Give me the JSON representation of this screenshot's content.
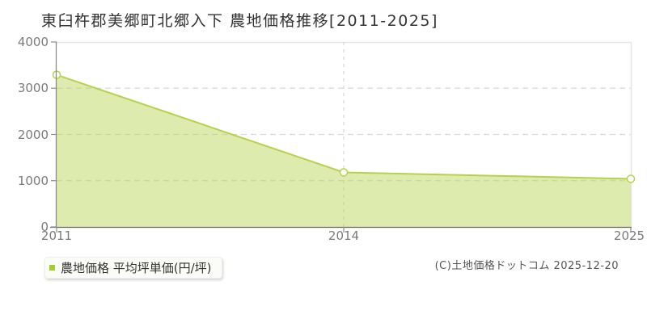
{
  "title": "東臼杵郡美郷町北郷入下 農地価格推移[2011-2025]",
  "legend": {
    "label": "農地価格 平均坪単価(円/坪)"
  },
  "footer": {
    "copyright": "(C)土地価格ドットコム 2025-12-20"
  },
  "chart_data": {
    "type": "area",
    "title": "東臼杵郡美郷町北郷入下 農地価格推移[2011-2025]",
    "categories": [
      "2011",
      "2014",
      "2025"
    ],
    "series": [
      {
        "name": "農地価格 平均坪単価(円/坪)",
        "values": [
          3290,
          1180,
          1040
        ]
      }
    ],
    "ylabel": "平均坪単価(円/坪)",
    "ylim": [
      0,
      4000
    ],
    "yticks": [
      0,
      1000,
      2000,
      3000,
      4000
    ],
    "grid": "dashed",
    "x_spacing": "even",
    "legend_position": "bottom-left",
    "colors": {
      "line": "#b5d24b",
      "fill": "rgba(181,210,75,0.45)",
      "marker_fill": "#ffffff",
      "grid": "#d9d9d9",
      "axis": "#8a8a8a",
      "baseline": "#666666",
      "plot_border": "#e5e5e5",
      "legend_marker": "#a5cc2a",
      "tick_text": "#7b7b7b",
      "title_text": "#333333"
    }
  }
}
